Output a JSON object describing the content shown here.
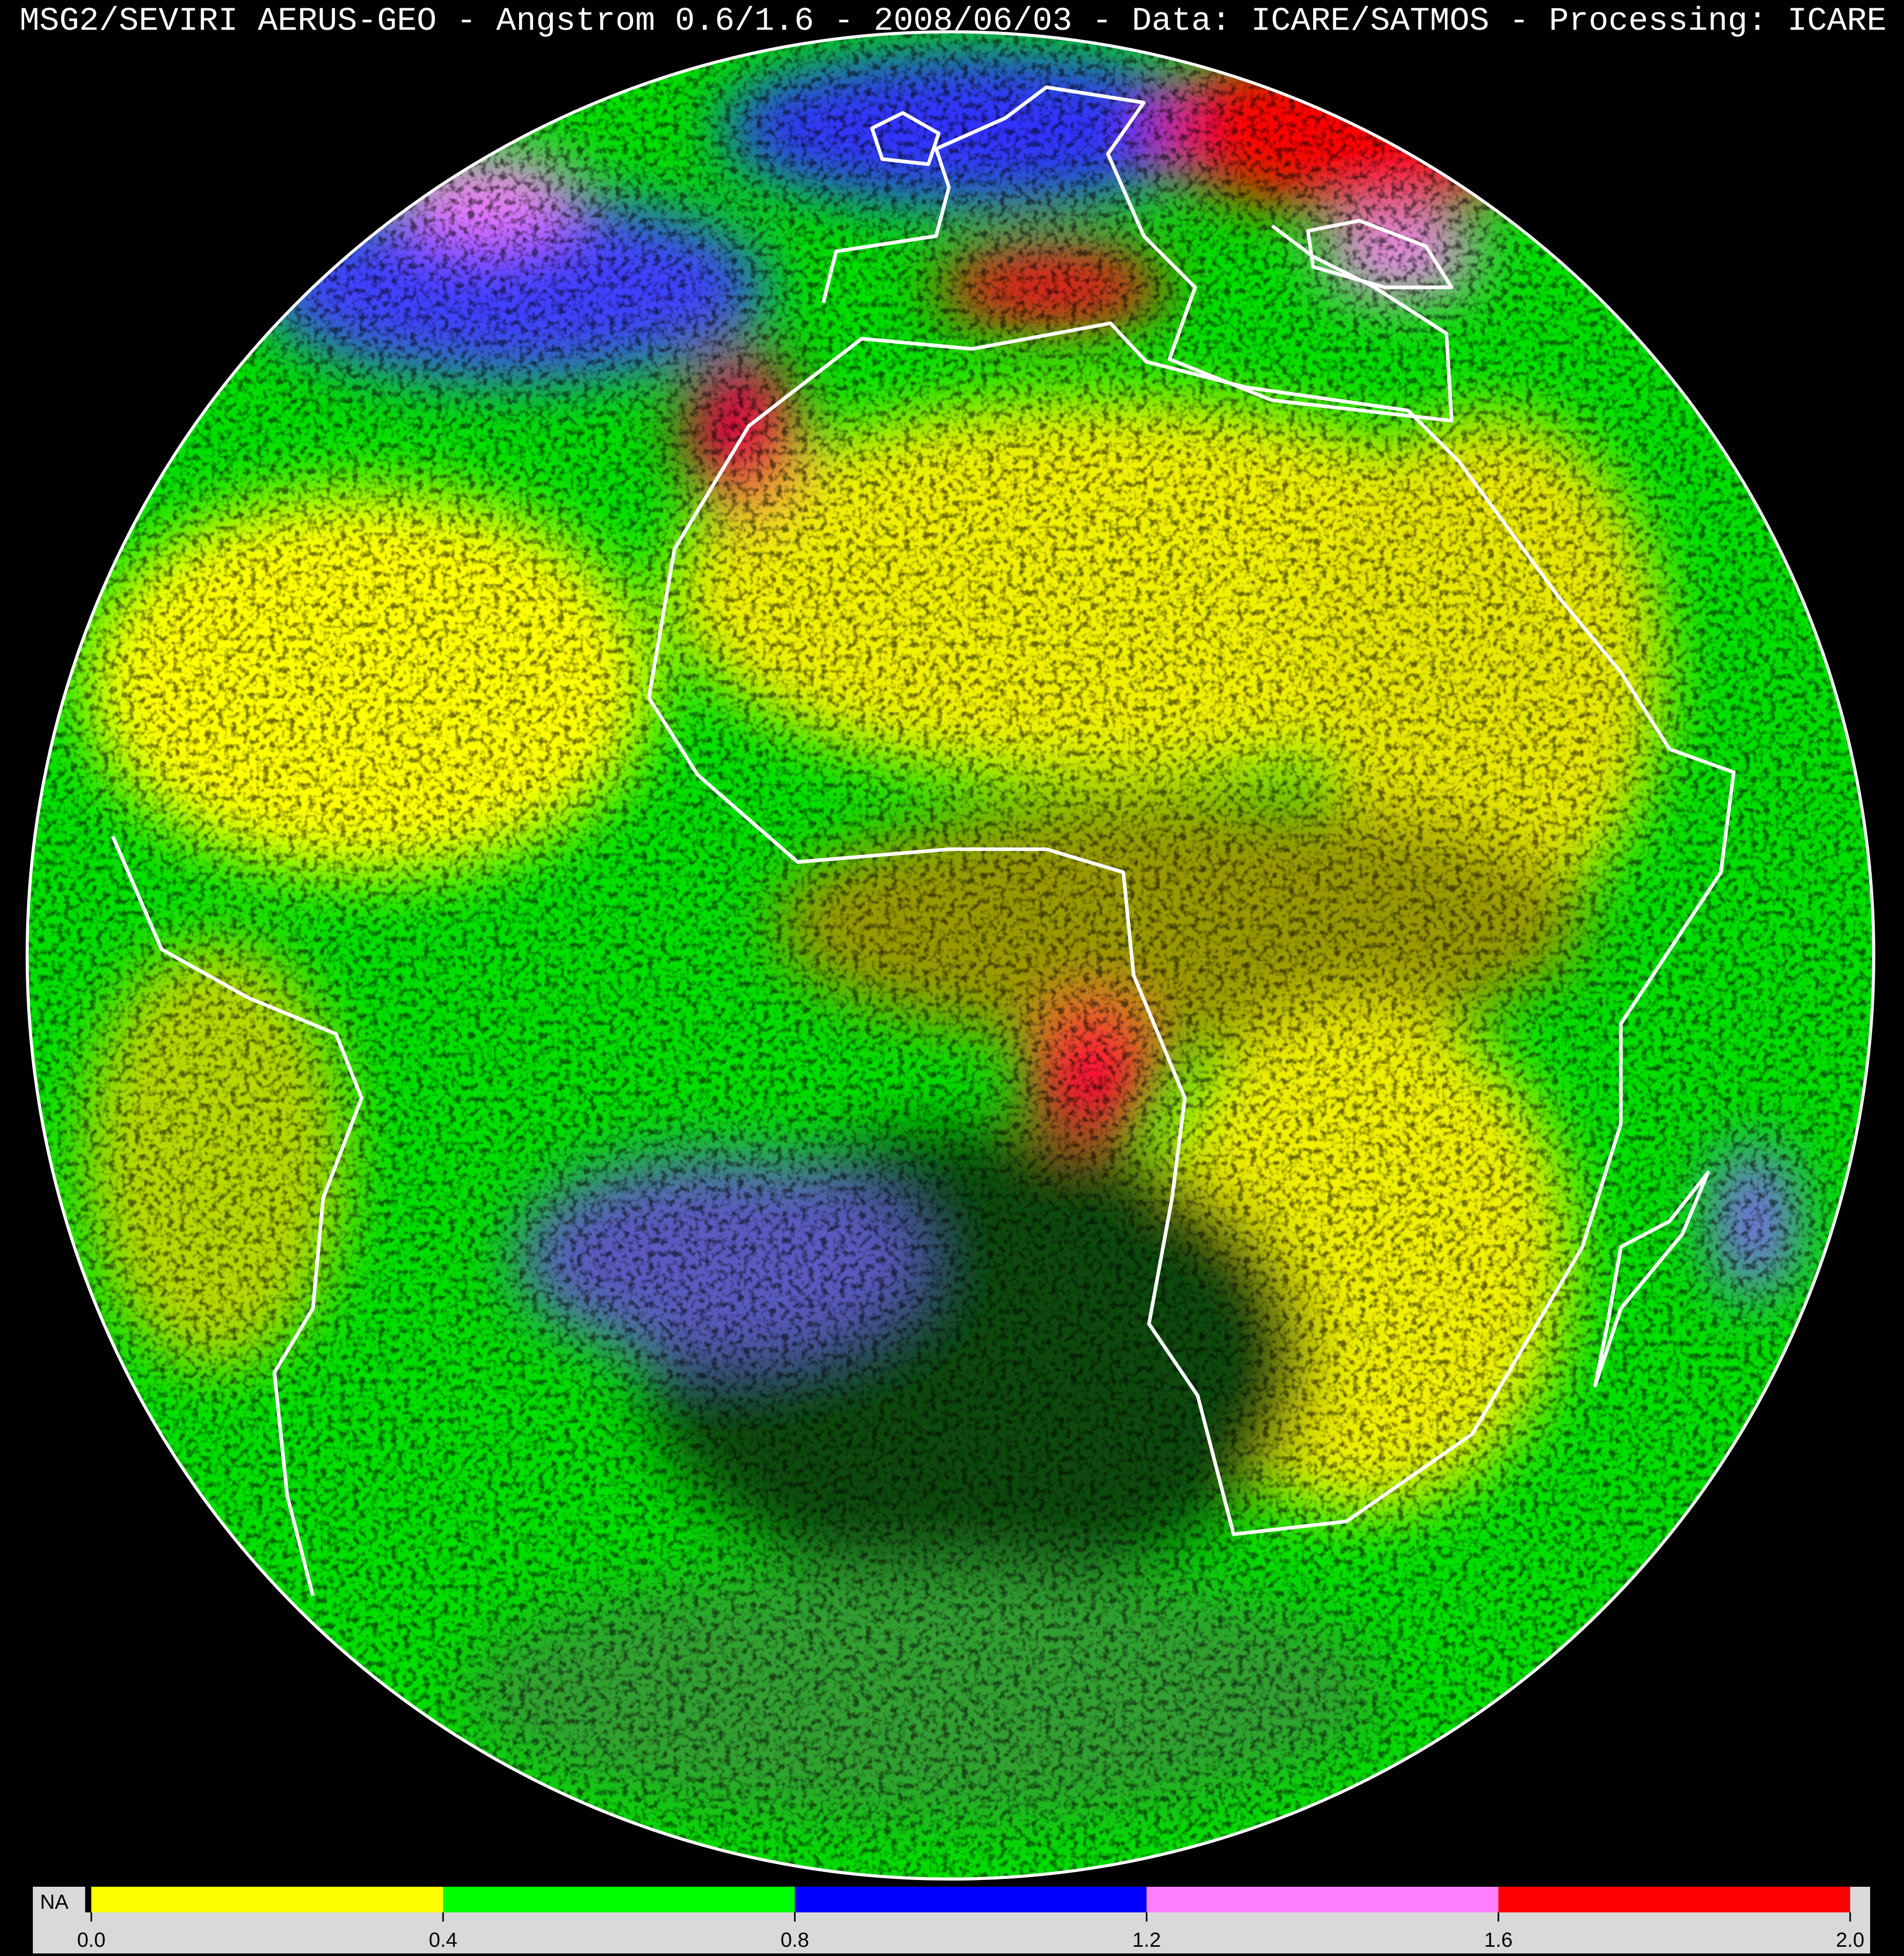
{
  "title": "MSG2/SEVIRI AERUS-GEO - Angstrom 0.6/1.6 - 2008/06/03 - Data: ICARE/SATMOS - Processing: ICARE",
  "colors": {
    "background": "#000000",
    "coastline": "#ffffff",
    "colorbar_frame": "#d9d9d9"
  },
  "colorbar": {
    "na_label": "NA",
    "na_color": "#000000",
    "bins": [
      {
        "from": 0.0,
        "to": 0.4,
        "color": "#ffff00"
      },
      {
        "from": 0.4,
        "to": 0.8,
        "color": "#00ff00"
      },
      {
        "from": 0.8,
        "to": 1.2,
        "color": "#0000ff"
      },
      {
        "from": 1.2,
        "to": 1.6,
        "color": "#ff80ff"
      },
      {
        "from": 1.6,
        "to": 2.0,
        "color": "#ff0000"
      }
    ],
    "ticks": [
      "0.0",
      "0.4",
      "0.8",
      "1.2",
      "1.6",
      "2.0"
    ]
  }
}
